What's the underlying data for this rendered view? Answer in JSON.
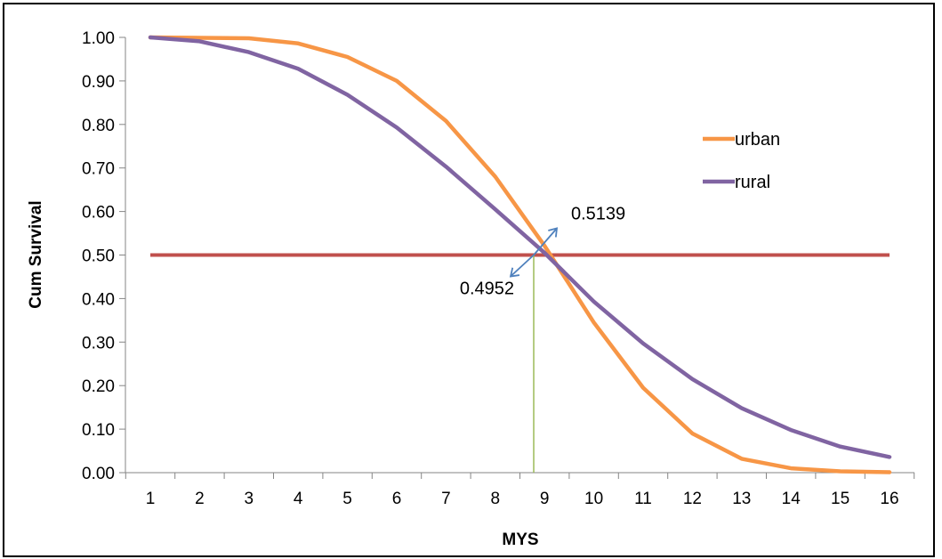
{
  "chart_data": {
    "type": "line",
    "title": "",
    "xlabel": "MYS",
    "ylabel": "Cum Survival",
    "x": [
      1,
      2,
      3,
      4,
      5,
      6,
      7,
      8,
      9,
      10,
      11,
      12,
      13,
      14,
      15,
      16
    ],
    "ylim": [
      0,
      1.0
    ],
    "yticks": [
      "0.00",
      "0.10",
      "0.20",
      "0.30",
      "0.40",
      "0.50",
      "0.60",
      "0.70",
      "0.80",
      "0.90",
      "1.00"
    ],
    "xticks": [
      "1",
      "2",
      "3",
      "4",
      "5",
      "6",
      "7",
      "8",
      "9",
      "10",
      "11",
      "12",
      "13",
      "14",
      "15",
      "16"
    ],
    "grid": false,
    "legend_position": "top-right",
    "series": [
      {
        "name": "urban",
        "color": "#F79646",
        "values": [
          1.0,
          0.999,
          0.998,
          0.986,
          0.955,
          0.9,
          0.808,
          0.68,
          0.521,
          0.345,
          0.195,
          0.09,
          0.032,
          0.01,
          0.003,
          0.001
        ]
      },
      {
        "name": "rural",
        "color": "#8064A2",
        "values": [
          1.0,
          0.991,
          0.966,
          0.928,
          0.868,
          0.793,
          0.703,
          0.605,
          0.505,
          0.393,
          0.297,
          0.215,
          0.148,
          0.098,
          0.06,
          0.036
        ]
      }
    ],
    "reference_lines": [
      {
        "type": "horizontal",
        "y": 0.5,
        "color": "#C0504D"
      },
      {
        "type": "vertical",
        "x": 8.78,
        "color": "#9BBB59"
      }
    ],
    "annotations": [
      {
        "text": "0.5139",
        "x": 8.78,
        "y": 0.5139,
        "direction": "up-right",
        "color": "#4F81BD"
      },
      {
        "text": "0.4952",
        "x": 8.78,
        "y": 0.4952,
        "direction": "down-left",
        "color": "#4F81BD"
      }
    ]
  }
}
